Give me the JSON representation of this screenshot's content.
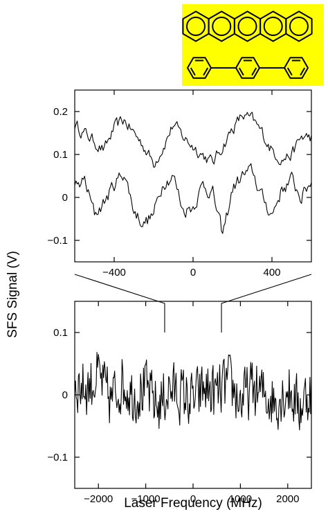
{
  "chart_data": [
    {
      "type": "line",
      "panel": "top (expanded view)",
      "xlim": [
        -600,
        600
      ],
      "ylim": [
        -0.15,
        0.25
      ],
      "xticks": [
        -400,
        0,
        400
      ],
      "xtick_labels": [
        "-400",
        "0",
        "400"
      ],
      "yticks": [
        0.2,
        0.1,
        0,
        -0.1
      ],
      "ytick_labels": [
        "0.2",
        "0.1",
        "0",
        "-0.1"
      ],
      "grid": false,
      "series": [
        {
          "x": [
            -600,
            -550,
            -500,
            -450,
            -400,
            -350,
            -300,
            -250,
            -200,
            -150,
            -100,
            -50,
            0,
            50,
            100,
            150,
            200,
            250,
            300,
            350,
            400,
            450,
            500,
            550,
            600
          ],
          "values": [
            0.17,
            0.15,
            0.13,
            0.11,
            0.16,
            0.18,
            0.15,
            0.12,
            0.08,
            0.12,
            0.17,
            0.14,
            0.12,
            0.1,
            0.08,
            0.12,
            0.16,
            0.19,
            0.18,
            0.15,
            0.11,
            0.09,
            0.1,
            0.14,
            0.14
          ]
        },
        {
          "x": [
            -600,
            -550,
            -500,
            -450,
            -400,
            -350,
            -300,
            -250,
            -200,
            -150,
            -100,
            -50,
            0,
            50,
            100,
            150,
            200,
            250,
            300,
            350,
            400,
            450,
            500,
            550,
            600
          ],
          "values": [
            0.02,
            0.04,
            -0.04,
            -0.01,
            0.03,
            0.06,
            -0.03,
            -0.06,
            -0.04,
            0.04,
            0.05,
            -0.03,
            -0.02,
            0.03,
            0.01,
            -0.09,
            0.02,
            0.05,
            0.06,
            0.0,
            -0.04,
            0.02,
            0.04,
            0.0,
            0.04
          ]
        }
      ]
    },
    {
      "type": "line",
      "panel": "bottom (full scan)",
      "xlabel": "Laser Frequency (MHz)",
      "ylabel": "SFS Signal (V)",
      "xlim": [
        -2500,
        2500
      ],
      "ylim": [
        -0.15,
        0.15
      ],
      "xticks": [
        -2000,
        -1000,
        0,
        1000,
        2000
      ],
      "xtick_labels": [
        "-2000",
        "-1000",
        "0",
        "1000",
        "2000"
      ],
      "yticks": [
        0.1,
        0,
        -0.1
      ],
      "ytick_labels": [
        "0.1",
        "0",
        "-0.1"
      ],
      "grid": false,
      "zoom_region": [
        -600,
        600
      ],
      "series": [
        {
          "x": [
            -2500,
            -2250,
            -2000,
            -1750,
            -1500,
            -1250,
            -1000,
            -750,
            -500,
            -250,
            0,
            250,
            500,
            750,
            1000,
            1250,
            1500,
            1750,
            2000,
            2250,
            2500
          ],
          "values": [
            0.02,
            0.01,
            0.03,
            -0.01,
            0.02,
            0.0,
            0.01,
            -0.02,
            0.01,
            0.0,
            -0.01,
            0.01,
            0.0,
            0.02,
            -0.01,
            0.01,
            0.0,
            -0.01,
            0.01,
            -0.02,
            0.01
          ]
        }
      ]
    }
  ],
  "inset": {
    "background_color": "#ffff00",
    "molecules": [
      "pentacene",
      "p-terphenyl"
    ]
  }
}
